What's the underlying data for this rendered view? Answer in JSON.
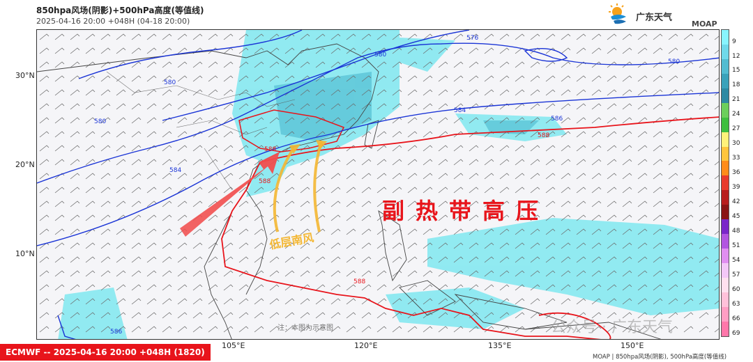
{
  "header": {
    "title": "850hpa风场(阴影)+500hPa高度(等值线)",
    "subtitle": "2025-04-16 20:00  +048H  (04-18 20:00)",
    "logo_text": "广东天气",
    "brand": "MOAP"
  },
  "map": {
    "lat_labels": [
      "30°N",
      "20°N",
      "10°N"
    ],
    "lon_labels": [
      "105°E",
      "120°E",
      "135°E",
      "150°E"
    ],
    "contours": [
      "576",
      "580",
      "580",
      "580",
      "580",
      "584",
      "584",
      "586",
      "586",
      "588",
      "588",
      "588",
      "588"
    ],
    "annotation_main": "副热带高压",
    "annotation_wind": "低层南风",
    "note": "注：本图为示意图",
    "watermark": "公众号 · 广东天气"
  },
  "colorbar": {
    "labels": [
      "9",
      "12",
      "15",
      "18",
      "21",
      "24",
      "27",
      "30",
      "33",
      "36",
      "39",
      "42",
      "45",
      "48",
      "51",
      "54",
      "57",
      "60",
      "63",
      "66",
      "69"
    ],
    "colors": [
      "#88f4ff",
      "#6fd9ea",
      "#52bcd1",
      "#3aa2ba",
      "#2d8aa3",
      "#6ccf5c",
      "#3fbf3f",
      "#fff27a",
      "#ffc53c",
      "#ff8c1a",
      "#e83b2c",
      "#b81d1d",
      "#8a1414",
      "#7a27c9",
      "#b255e0",
      "#e08ef0",
      "#f3c7f7",
      "#ffe0ef",
      "#ffc1da",
      "#ff9ec4",
      "#ff77aa"
    ]
  },
  "footer": {
    "badge": "ECMWF -- 2025-04-16 20:00 +048H (1820)",
    "credit": "MOAP | 850hpa风场(阴影), 500hPa高度(等值线)"
  }
}
